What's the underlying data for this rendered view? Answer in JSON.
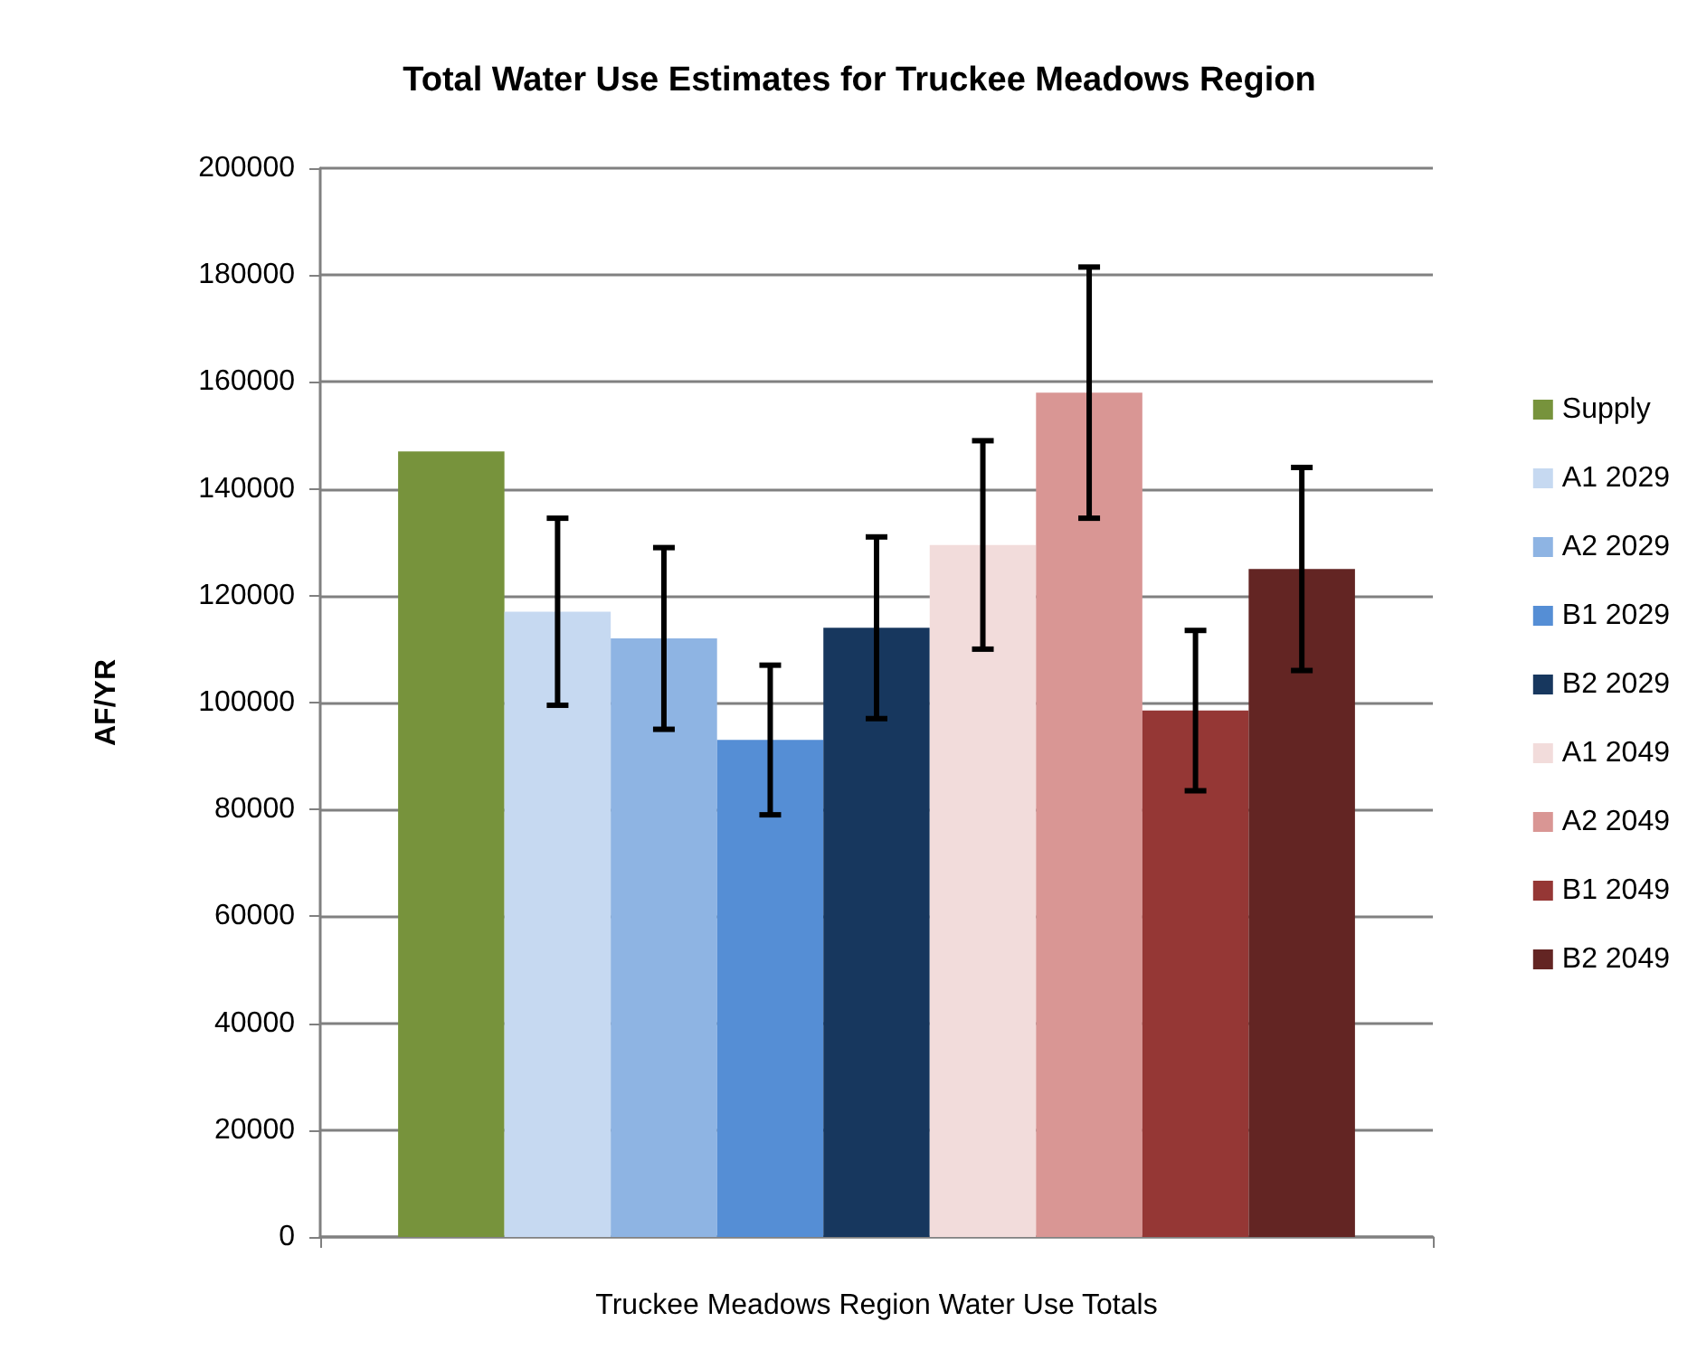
{
  "chart_data": {
    "type": "bar",
    "title": "Total Water Use Estimates for Truckee Meadows Region",
    "xlabel": "Truckee Meadows Region Water Use Totals",
    "ylabel": "AF/YR",
    "categories": [
      null
    ],
    "series": [
      {
        "name": "Supply",
        "color": "#77933c",
        "values": [
          147000
        ]
      },
      {
        "name": "A1 2029",
        "color": "#c6d9f1",
        "values": [
          117000
        ],
        "errors": [
          17500
        ]
      },
      {
        "name": "A2 2029",
        "color": "#8eb4e3",
        "values": [
          112000
        ],
        "errors": [
          17000
        ]
      },
      {
        "name": "B1 2029",
        "color": "#558ed5",
        "values": [
          93000
        ],
        "errors": [
          14000
        ]
      },
      {
        "name": "B2 2029",
        "color": "#17375e",
        "values": [
          114000
        ],
        "errors": [
          17000
        ]
      },
      {
        "name": "A1 2049",
        "color": "#f2dcdb",
        "values": [
          129500
        ],
        "errors": [
          19500
        ]
      },
      {
        "name": "A2 2049",
        "color": "#d99694",
        "values": [
          158000
        ],
        "errors": [
          23500
        ]
      },
      {
        "name": "B1 2049",
        "color": "#953735",
        "values": [
          98500
        ],
        "errors": [
          15000
        ]
      },
      {
        "name": "B2 2049",
        "color": "#632523",
        "values": [
          125000
        ],
        "errors": [
          19000
        ]
      }
    ],
    "ylim": [
      0,
      200000
    ],
    "yticks": [
      0,
      20000,
      40000,
      60000,
      80000,
      100000,
      120000,
      140000,
      160000,
      180000,
      200000
    ],
    "grid": "y",
    "legend": "right"
  }
}
